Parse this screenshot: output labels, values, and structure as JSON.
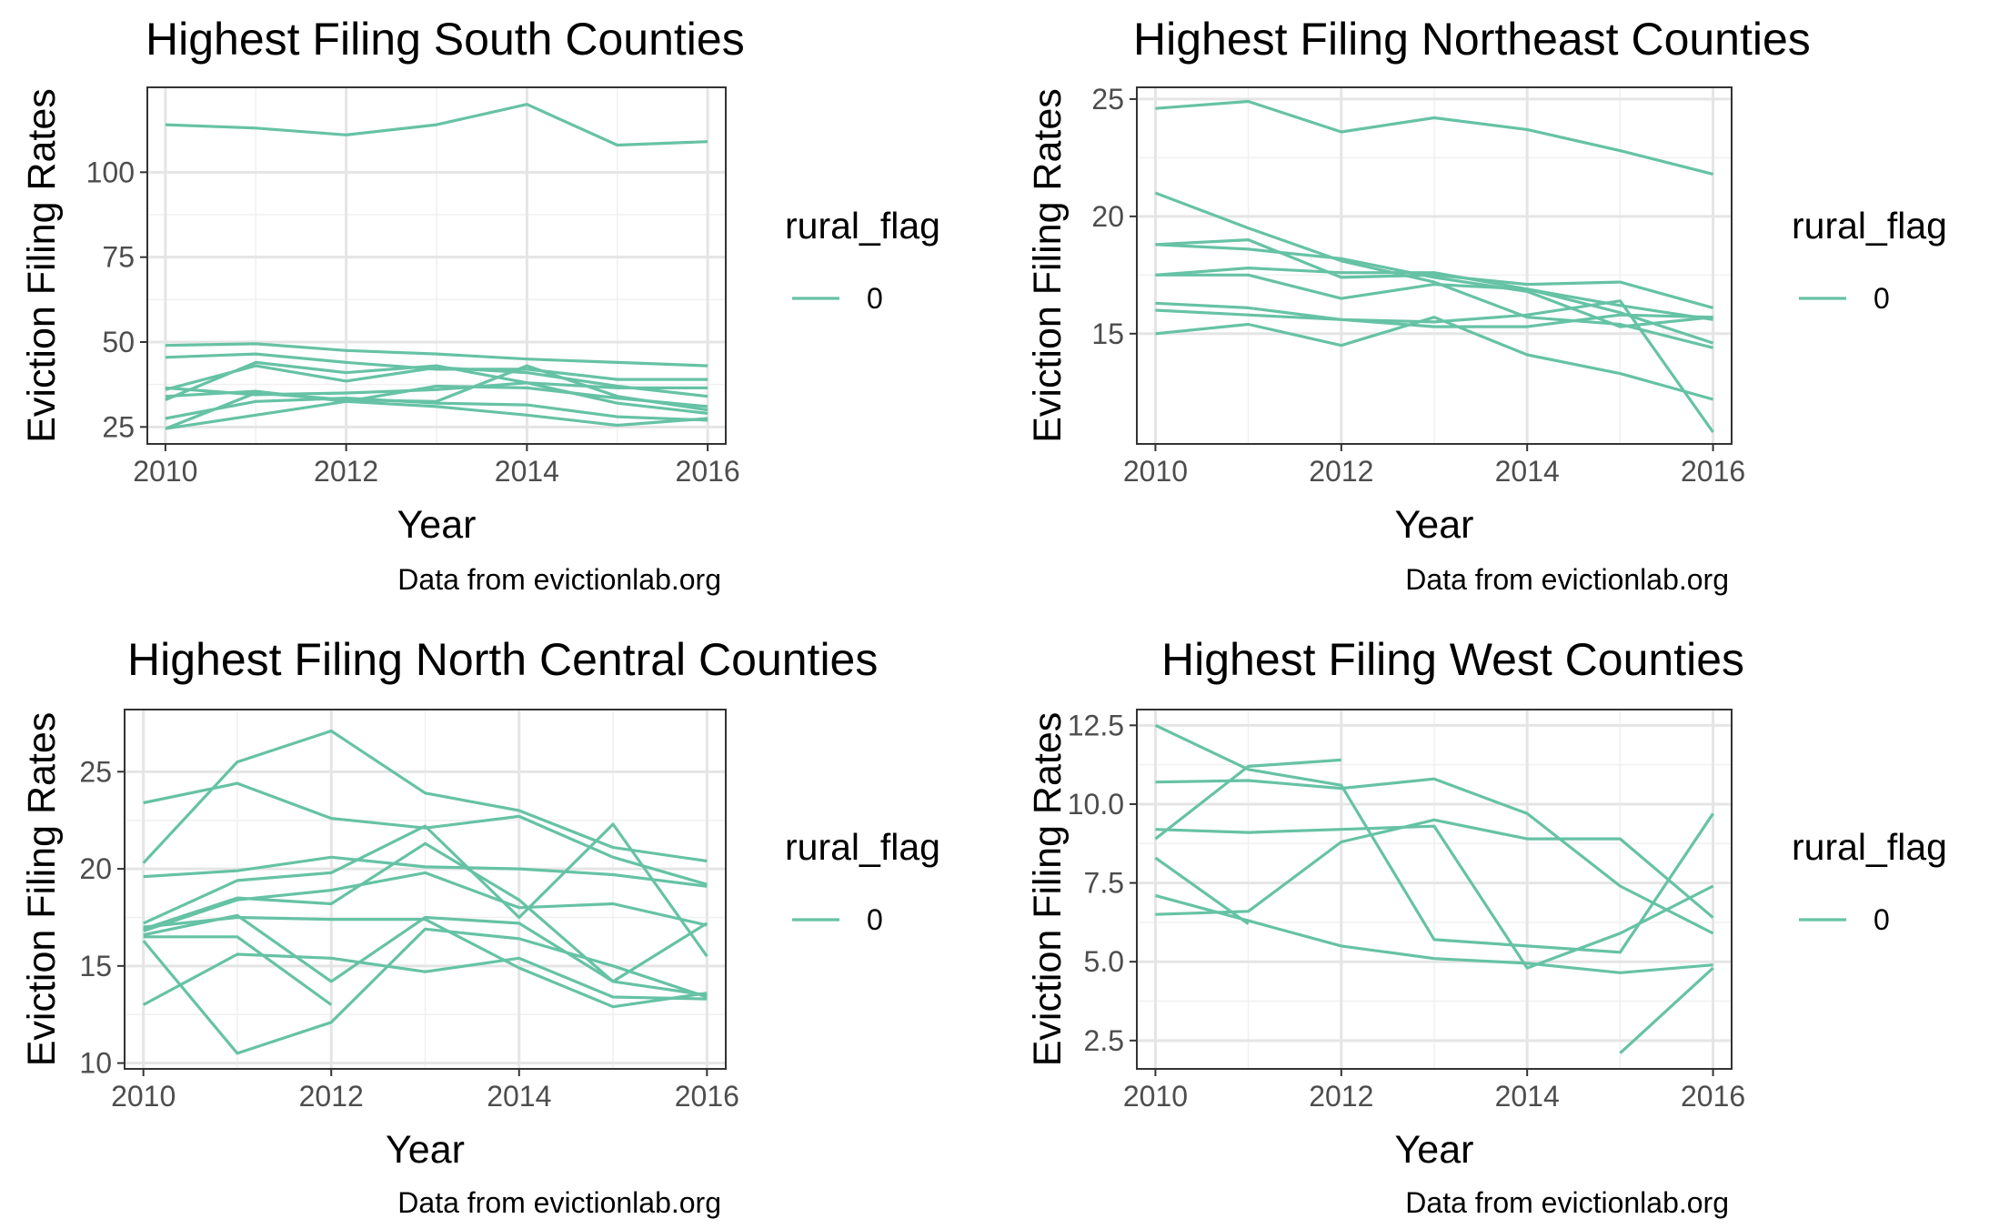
{
  "chart_data": [
    {
      "type": "line",
      "title": "Highest Filing South Counties",
      "xlabel": "Year",
      "ylabel": "Eviction Filing Rates",
      "caption": "Data from evictionlab.org",
      "legend": {
        "title": "rural_flag",
        "entries": [
          "0"
        ],
        "placement": "right"
      },
      "line_color": "#66c2a5",
      "grid": true,
      "xlim": [
        2009.8,
        2016.2
      ],
      "ylim": [
        20,
        125
      ],
      "xticks": [
        2010,
        2012,
        2014,
        2016
      ],
      "yticks": [
        25,
        50,
        75,
        100
      ],
      "series": [
        {
          "x": [
            2010,
            2011,
            2012,
            2013,
            2014,
            2015,
            2016
          ],
          "values": [
            114,
            113,
            111,
            114,
            120,
            108,
            109
          ]
        },
        {
          "x": [
            2010,
            2011,
            2012,
            2013,
            2014,
            2015,
            2016
          ],
          "values": [
            49,
            49.5,
            47.5,
            46.5,
            45,
            44,
            43
          ]
        },
        {
          "x": [
            2010,
            2011,
            2012,
            2013,
            2014,
            2015,
            2016
          ],
          "values": [
            45.5,
            46.5,
            44,
            42,
            42,
            39,
            39
          ]
        },
        {
          "x": [
            2010,
            2011,
            2012,
            2013,
            2014,
            2015,
            2016
          ],
          "values": [
            36,
            43,
            38.5,
            42.5,
            41,
            37,
            34
          ]
        },
        {
          "x": [
            2010,
            2011,
            2012,
            2013,
            2014,
            2015,
            2016
          ],
          "values": [
            33,
            44,
            41,
            43,
            38,
            36.5,
            36.5
          ]
        },
        {
          "x": [
            2010,
            2011,
            2012,
            2013,
            2014,
            2015,
            2016
          ],
          "values": [
            36.5,
            34.5,
            35,
            36,
            38,
            32,
            29
          ]
        },
        {
          "x": [
            2010,
            2011,
            2012,
            2013,
            2014,
            2015,
            2016
          ],
          "values": [
            34,
            35.5,
            32.5,
            37,
            36.5,
            33.5,
            31
          ]
        },
        {
          "x": [
            2010,
            2011,
            2012,
            2013,
            2014,
            2015,
            2016
          ],
          "values": [
            24.5,
            35,
            33,
            32.5,
            43,
            34,
            30
          ]
        },
        {
          "x": [
            2010,
            2011,
            2012,
            2013,
            2014,
            2015,
            2016
          ],
          "values": [
            27.5,
            32.5,
            33.5,
            32,
            31.5,
            28,
            27
          ]
        },
        {
          "x": [
            2010,
            2011,
            2012,
            2013,
            2014,
            2015,
            2016
          ],
          "values": [
            24.5,
            28.5,
            32.5,
            31,
            28.5,
            25.5,
            27.5
          ]
        }
      ]
    },
    {
      "type": "line",
      "title": "Highest Filing Northeast Counties",
      "xlabel": "Year",
      "ylabel": "Eviction Filing Rates",
      "caption": "Data from evictionlab.org",
      "legend": {
        "title": "rural_flag",
        "entries": [
          "0"
        ],
        "placement": "right"
      },
      "line_color": "#66c2a5",
      "grid": true,
      "xlim": [
        2009.8,
        2016.2
      ],
      "ylim": [
        10.3,
        25.5
      ],
      "xticks": [
        2010,
        2012,
        2014,
        2016
      ],
      "yticks": [
        15,
        20,
        25
      ],
      "series": [
        {
          "x": [
            2010,
            2011,
            2012,
            2013,
            2014,
            2015,
            2016
          ],
          "values": [
            24.6,
            24.9,
            23.6,
            24.2,
            23.7,
            22.8,
            21.8
          ]
        },
        {
          "x": [
            2010,
            2011,
            2012,
            2013,
            2014,
            2015,
            2016
          ],
          "values": [
            21,
            19.5,
            18.1,
            17.2,
            15.7,
            15.4,
            14.4
          ]
        },
        {
          "x": [
            2010,
            2011,
            2012,
            2013,
            2014,
            2015,
            2016
          ],
          "values": [
            18.8,
            19,
            17.4,
            17.5,
            17.1,
            17.2,
            16.1
          ]
        },
        {
          "x": [
            2010,
            2011,
            2012,
            2013,
            2014,
            2015,
            2016
          ],
          "values": [
            18.8,
            18.6,
            18.2,
            17.4,
            16.8,
            15.3,
            15.7
          ]
        },
        {
          "x": [
            2010,
            2011,
            2012,
            2013,
            2014,
            2015,
            2016
          ],
          "values": [
            17.5,
            17.8,
            17.6,
            17.6,
            16.9,
            16.2,
            15.6
          ]
        },
        {
          "x": [
            2010,
            2011,
            2012,
            2013,
            2014,
            2015,
            2016
          ],
          "values": [
            17.5,
            17.5,
            16.5,
            17.1,
            16.9,
            15.9,
            14.6
          ]
        },
        {
          "x": [
            2010,
            2011,
            2012,
            2013,
            2014,
            2015,
            2016
          ],
          "values": [
            16.3,
            16.1,
            15.6,
            15.5,
            15.8,
            16.4,
            10.8
          ]
        },
        {
          "x": [
            2010,
            2011,
            2012,
            2013,
            2014,
            2015,
            2016
          ],
          "values": [
            16,
            15.8,
            15.6,
            15.3,
            15.3,
            15.8,
            15.7
          ]
        },
        {
          "x": [
            2010,
            2011,
            2012,
            2013,
            2014,
            2015,
            2016
          ],
          "values": [
            15,
            15.4,
            14.5,
            15.7,
            14.1,
            13.3,
            12.2
          ]
        }
      ]
    },
    {
      "type": "line",
      "title": "Highest Filing North Central Counties",
      "xlabel": "Year",
      "ylabel": "Eviction Filing Rates",
      "caption": "Data from evictionlab.org",
      "legend": {
        "title": "rural_flag",
        "entries": [
          "0"
        ],
        "placement": "right"
      },
      "line_color": "#66c2a5",
      "grid": true,
      "xlim": [
        2009.8,
        2016.2
      ],
      "ylim": [
        9.7,
        28.2
      ],
      "xticks": [
        2010,
        2012,
        2014,
        2016
      ],
      "yticks": [
        10,
        15,
        20,
        25
      ],
      "series": [
        {
          "x": [
            2010,
            2011,
            2012,
            2013,
            2014,
            2015,
            2016
          ],
          "values": [
            23.4,
            24.4,
            22.6,
            22.1,
            22.7,
            20.6,
            19.2
          ]
        },
        {
          "x": [
            2010,
            2011,
            2012,
            2013,
            2014,
            2015,
            2016
          ],
          "values": [
            20.3,
            25.5,
            27.1,
            23.9,
            23,
            21.1,
            20.4
          ]
        },
        {
          "x": [
            2010,
            2011,
            2012,
            2013,
            2014,
            2015,
            2016
          ],
          "values": [
            19.6,
            19.9,
            20.6,
            20.1,
            20,
            19.7,
            19.1
          ]
        },
        {
          "x": [
            2010,
            2011,
            2012,
            2013,
            2014,
            2015,
            2016
          ],
          "values": [
            17.2,
            19.4,
            19.8,
            22.2,
            17.5,
            22.3,
            15.5
          ]
        },
        {
          "x": [
            2010,
            2011,
            2012,
            2013,
            2014,
            2015,
            2016
          ],
          "values": [
            16.9,
            18.5,
            18.2,
            21.3,
            18.4,
            14.2,
            13.5
          ]
        },
        {
          "x": [
            2010,
            2011,
            2012,
            2013,
            2014,
            2015,
            2016
          ],
          "values": [
            16.8,
            18.4,
            18.9,
            19.8,
            18,
            18.2,
            17.1
          ]
        },
        {
          "x": [
            2010,
            2011,
            2012,
            2013,
            2014,
            2015,
            2016
          ],
          "values": [
            16.6,
            17.6,
            14.2,
            17.5,
            17.2,
            14.2,
            17.2
          ]
        },
        {
          "x": [
            2010,
            2011,
            2012,
            2013,
            2014,
            2015,
            2016
          ],
          "values": [
            17,
            17.5,
            17.4,
            17.4,
            14.9,
            12.9,
            13.6
          ]
        },
        {
          "x": [
            2010,
            2011,
            2012
          ],
          "values": [
            16.5,
            16.5,
            13
          ]
        },
        {
          "x": [
            2010,
            2011,
            2012,
            2013,
            2014,
            2015,
            2016
          ],
          "values": [
            13,
            15.6,
            15.4,
            14.7,
            15.4,
            13.4,
            13.3
          ]
        },
        {
          "x": [
            2010,
            2011,
            2012,
            2013,
            2014,
            2015,
            2016
          ],
          "values": [
            16.3,
            10.5,
            12.1,
            16.9,
            16.4,
            15,
            13.4
          ]
        }
      ]
    },
    {
      "type": "line",
      "title": "Highest Filing West Counties",
      "xlabel": "Year",
      "ylabel": "Eviction Filing Rates",
      "caption": "Data from evictionlab.org",
      "legend": {
        "title": "rural_flag",
        "entries": [
          "0"
        ],
        "placement": "right"
      },
      "line_color": "#66c2a5",
      "grid": true,
      "xlim": [
        2009.8,
        2016.2
      ],
      "ylim": [
        1.6,
        13
      ],
      "xticks": [
        2010,
        2012,
        2014,
        2016
      ],
      "yticks": [
        2.5,
        5.0,
        7.5,
        10.0,
        12.5
      ],
      "series": [
        {
          "x": [
            2010,
            2011,
            2012,
            2013,
            2014,
            2015,
            2016
          ],
          "values": [
            12.5,
            11.1,
            10.6,
            5.7,
            5.5,
            5.3,
            9.7
          ]
        },
        {
          "x": [
            2010,
            2011,
            2012,
            2013,
            2014,
            2015,
            2016
          ],
          "values": [
            10.7,
            10.75,
            10.5,
            10.8,
            9.7,
            7.4,
            5.9
          ]
        },
        {
          "x": [
            2010,
            2011,
            2012
          ],
          "values": [
            8.9,
            11.2,
            11.4
          ]
        },
        {
          "x": [
            2010,
            2011,
            2012,
            2013,
            2014,
            2015,
            2016
          ],
          "values": [
            9.2,
            9.1,
            9.2,
            9.3,
            4.8,
            5.9,
            7.4
          ]
        },
        {
          "x": [
            2010,
            2011,
            2012,
            2013,
            2014,
            2015,
            2016
          ],
          "values": [
            6.5,
            6.6,
            8.8,
            9.5,
            8.9,
            8.9,
            6.4
          ]
        },
        {
          "x": [
            2010,
            2011,
            2012,
            2013,
            2014,
            2015,
            2016
          ],
          "values": [
            7.1,
            6.3,
            5.5,
            5.1,
            4.95,
            4.65,
            4.9
          ]
        },
        {
          "x": [
            2010,
            2011
          ],
          "values": [
            8.3,
            6.2
          ]
        },
        {
          "x": [
            2015,
            2016
          ],
          "values": [
            2.1,
            4.8
          ]
        }
      ]
    }
  ]
}
